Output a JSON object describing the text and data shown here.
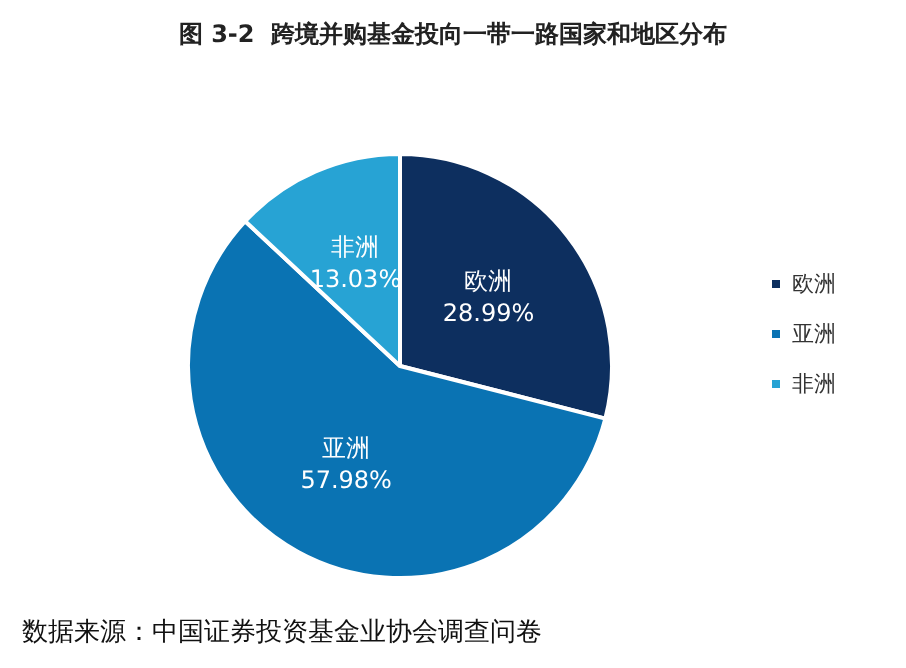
{
  "chart_data": {
    "type": "pie",
    "title": "图 3-2  跨境并购基金投向一带一路国家和地区分布",
    "categories": [
      "欧洲",
      "亚洲",
      "非洲"
    ],
    "values": [
      28.99,
      57.98,
      13.03
    ],
    "colors": [
      "#0d2f5f",
      "#0a73b3",
      "#27a3d4"
    ],
    "value_labels": [
      "28.99%",
      "57.98%",
      "13.03%"
    ],
    "legend": "right",
    "annotations": [
      "数据来源：中国证券投资基金业协会调查问卷"
    ]
  }
}
